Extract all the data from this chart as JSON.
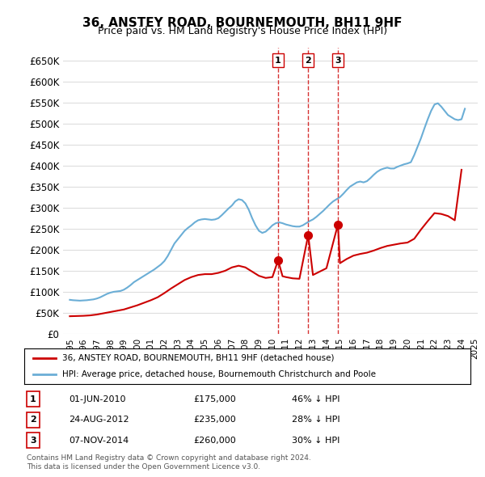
{
  "title": "36, ANSTEY ROAD, BOURNEMOUTH, BH11 9HF",
  "subtitle": "Price paid vs. HM Land Registry's House Price Index (HPI)",
  "legend_property": "36, ANSTEY ROAD, BOURNEMOUTH, BH11 9HF (detached house)",
  "legend_hpi": "HPI: Average price, detached house, Bournemouth Christchurch and Poole",
  "footer1": "Contains HM Land Registry data © Crown copyright and database right 2024.",
  "footer2": "This data is licensed under the Open Government Licence v3.0.",
  "property_color": "#cc0000",
  "hpi_color": "#6baed6",
  "background_color": "#ffffff",
  "grid_color": "#dddddd",
  "ylim": [
    0,
    680000
  ],
  "yticks": [
    0,
    50000,
    100000,
    150000,
    200000,
    250000,
    300000,
    350000,
    400000,
    450000,
    500000,
    550000,
    600000,
    650000
  ],
  "ytick_labels": [
    "£0",
    "£50K",
    "£100K",
    "£150K",
    "£200K",
    "£250K",
    "£300K",
    "£350K",
    "£400K",
    "£450K",
    "£500K",
    "£550K",
    "£600K",
    "£650K"
  ],
  "transactions": [
    {
      "num": 1,
      "date": "01-JUN-2010",
      "price": 175000,
      "pct": "46%",
      "year": 2010.42
    },
    {
      "num": 2,
      "date": "24-AUG-2012",
      "price": 235000,
      "pct": "28%",
      "year": 2012.65
    },
    {
      "num": 3,
      "date": "07-NOV-2014",
      "price": 260000,
      "pct": "30%",
      "year": 2014.85
    }
  ],
  "hpi_data": {
    "years": [
      1995.0,
      1995.25,
      1995.5,
      1995.75,
      1996.0,
      1996.25,
      1996.5,
      1996.75,
      1997.0,
      1997.25,
      1997.5,
      1997.75,
      1998.0,
      1998.25,
      1998.5,
      1998.75,
      1999.0,
      1999.25,
      1999.5,
      1999.75,
      2000.0,
      2000.25,
      2000.5,
      2000.75,
      2001.0,
      2001.25,
      2001.5,
      2001.75,
      2002.0,
      2002.25,
      2002.5,
      2002.75,
      2003.0,
      2003.25,
      2003.5,
      2003.75,
      2004.0,
      2004.25,
      2004.5,
      2004.75,
      2005.0,
      2005.25,
      2005.5,
      2005.75,
      2006.0,
      2006.25,
      2006.5,
      2006.75,
      2007.0,
      2007.25,
      2007.5,
      2007.75,
      2008.0,
      2008.25,
      2008.5,
      2008.75,
      2009.0,
      2009.25,
      2009.5,
      2009.75,
      2010.0,
      2010.25,
      2010.5,
      2010.75,
      2011.0,
      2011.25,
      2011.5,
      2011.75,
      2012.0,
      2012.25,
      2012.5,
      2012.75,
      2013.0,
      2013.25,
      2013.5,
      2013.75,
      2014.0,
      2014.25,
      2014.5,
      2014.75,
      2015.0,
      2015.25,
      2015.5,
      2015.75,
      2016.0,
      2016.25,
      2016.5,
      2016.75,
      2017.0,
      2017.25,
      2017.5,
      2017.75,
      2018.0,
      2018.25,
      2018.5,
      2018.75,
      2019.0,
      2019.25,
      2019.5,
      2019.75,
      2020.0,
      2020.25,
      2020.5,
      2020.75,
      2021.0,
      2021.25,
      2021.5,
      2021.75,
      2022.0,
      2022.25,
      2022.5,
      2022.75,
      2023.0,
      2023.25,
      2023.5,
      2023.75,
      2024.0,
      2024.25
    ],
    "values": [
      81000,
      80000,
      79500,
      79000,
      79500,
      80000,
      81000,
      82000,
      84000,
      87000,
      91000,
      95000,
      98000,
      100000,
      101000,
      102000,
      105000,
      110000,
      116000,
      123000,
      128000,
      133000,
      138000,
      143000,
      148000,
      153000,
      159000,
      165000,
      173000,
      185000,
      200000,
      215000,
      225000,
      235000,
      245000,
      252000,
      258000,
      265000,
      270000,
      272000,
      273000,
      272000,
      271000,
      272000,
      275000,
      282000,
      290000,
      298000,
      305000,
      315000,
      320000,
      318000,
      310000,
      295000,
      275000,
      258000,
      245000,
      240000,
      243000,
      250000,
      258000,
      263000,
      265000,
      263000,
      260000,
      258000,
      256000,
      255000,
      255000,
      258000,
      263000,
      268000,
      272000,
      278000,
      285000,
      292000,
      300000,
      308000,
      315000,
      320000,
      325000,
      333000,
      342000,
      350000,
      355000,
      360000,
      362000,
      360000,
      363000,
      370000,
      378000,
      385000,
      390000,
      393000,
      395000,
      393000,
      393000,
      397000,
      400000,
      403000,
      405000,
      408000,
      425000,
      445000,
      465000,
      488000,
      510000,
      530000,
      545000,
      548000,
      540000,
      530000,
      520000,
      515000,
      510000,
      508000,
      510000,
      535000
    ]
  },
  "property_data": {
    "years": [
      1995.0,
      1995.5,
      1996.0,
      1996.5,
      1997.0,
      1997.5,
      1998.0,
      1998.5,
      1999.0,
      1999.5,
      2000.0,
      2000.5,
      2001.0,
      2001.5,
      2002.0,
      2002.5,
      2003.0,
      2003.5,
      2004.0,
      2004.5,
      2005.0,
      2005.5,
      2006.0,
      2006.5,
      2007.0,
      2007.5,
      2008.0,
      2008.5,
      2009.0,
      2009.5,
      2010.0,
      2010.42,
      2010.75,
      2011.0,
      2011.5,
      2012.0,
      2012.65,
      2013.0,
      2013.5,
      2014.0,
      2014.85,
      2015.0,
      2015.5,
      2016.0,
      2016.5,
      2017.0,
      2017.5,
      2018.0,
      2018.5,
      2019.0,
      2019.5,
      2020.0,
      2020.5,
      2021.0,
      2021.5,
      2022.0,
      2022.5,
      2023.0,
      2023.5,
      2024.0
    ],
    "values": [
      42000,
      42500,
      43000,
      44000,
      46000,
      49000,
      52000,
      55000,
      58000,
      63000,
      68000,
      74000,
      80000,
      87000,
      97000,
      108000,
      118000,
      128000,
      135000,
      140000,
      142000,
      142000,
      145000,
      150000,
      158000,
      162000,
      158000,
      148000,
      138000,
      133000,
      135000,
      175000,
      137000,
      135000,
      132000,
      131000,
      235000,
      140000,
      148000,
      156000,
      260000,
      168000,
      178000,
      186000,
      190000,
      193000,
      198000,
      204000,
      209000,
      212000,
      215000,
      217000,
      226000,
      248000,
      268000,
      287000,
      285000,
      280000,
      270000,
      390000
    ]
  }
}
